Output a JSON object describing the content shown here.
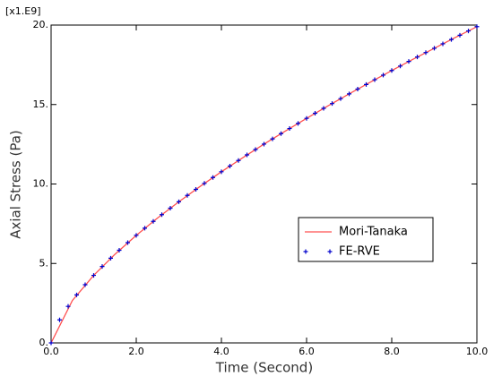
{
  "chart_data": {
    "type": "line",
    "x_label": "Time (Second)",
    "y_label": "Axial Stress (Pa)",
    "y_multiplier": "[x1.E9]",
    "xlim": [
      0,
      10
    ],
    "ylim": [
      0,
      20
    ],
    "xticks": [
      {
        "value": 0,
        "label": "0.0"
      },
      {
        "value": 2,
        "label": "2.0"
      },
      {
        "value": 4,
        "label": "4.0"
      },
      {
        "value": 6,
        "label": "6.0"
      },
      {
        "value": 8,
        "label": "8.0"
      },
      {
        "value": 10,
        "label": "10.0"
      }
    ],
    "yticks": [
      {
        "value": 0,
        "label": "0."
      },
      {
        "value": 5,
        "label": "5."
      },
      {
        "value": 10,
        "label": "10."
      },
      {
        "value": 15,
        "label": "15."
      },
      {
        "value": 20,
        "label": "20."
      }
    ],
    "legend": "lower right",
    "series": [
      {
        "name": "Mori-Tanaka",
        "color": "#ff5050",
        "marker": "line",
        "x": [
          0,
          0.5,
          1,
          1.5,
          2,
          2.5,
          3,
          3.5,
          4,
          4.5,
          5,
          5.5,
          6,
          6.5,
          7,
          7.5,
          8,
          8.5,
          9,
          9.5,
          10
        ],
        "values": [
          0,
          2.67,
          4.25,
          5.58,
          6.77,
          7.86,
          8.88,
          9.85,
          10.77,
          11.65,
          12.51,
          13.33,
          14.13,
          14.91,
          15.67,
          16.41,
          17.14,
          17.85,
          18.54,
          19.23,
          19.9
        ]
      },
      {
        "name": "FE-RVE",
        "color": "#0000cc",
        "marker": "plus",
        "x": [
          0,
          0.2,
          0.4,
          0.6,
          0.8,
          1,
          1.2,
          1.4,
          1.6,
          1.8,
          2,
          2.2,
          2.4,
          2.6,
          2.8,
          3,
          3.2,
          3.4,
          3.6,
          3.8,
          4,
          4.2,
          4.4,
          4.6,
          4.8,
          5,
          5.2,
          5.4,
          5.6,
          5.8,
          6,
          6.2,
          6.4,
          6.6,
          6.8,
          7,
          7.2,
          7.4,
          7.6,
          7.8,
          8,
          8.2,
          8.4,
          8.6,
          8.8,
          9,
          9.2,
          9.4,
          9.6,
          9.8,
          10
        ],
        "values": [
          0,
          1.45,
          2.3,
          3.02,
          3.66,
          4.25,
          4.81,
          5.33,
          5.83,
          6.31,
          6.77,
          7.22,
          7.65,
          8.07,
          8.48,
          8.88,
          9.28,
          9.66,
          10.04,
          10.41,
          10.77,
          11.13,
          11.48,
          11.83,
          12.17,
          12.51,
          12.84,
          13.17,
          13.49,
          13.81,
          14.13,
          14.45,
          14.76,
          15.06,
          15.37,
          15.67,
          15.97,
          16.26,
          16.56,
          16.85,
          17.14,
          17.42,
          17.71,
          17.99,
          18.27,
          18.54,
          18.82,
          19.09,
          19.36,
          19.63,
          19.9
        ]
      }
    ]
  }
}
